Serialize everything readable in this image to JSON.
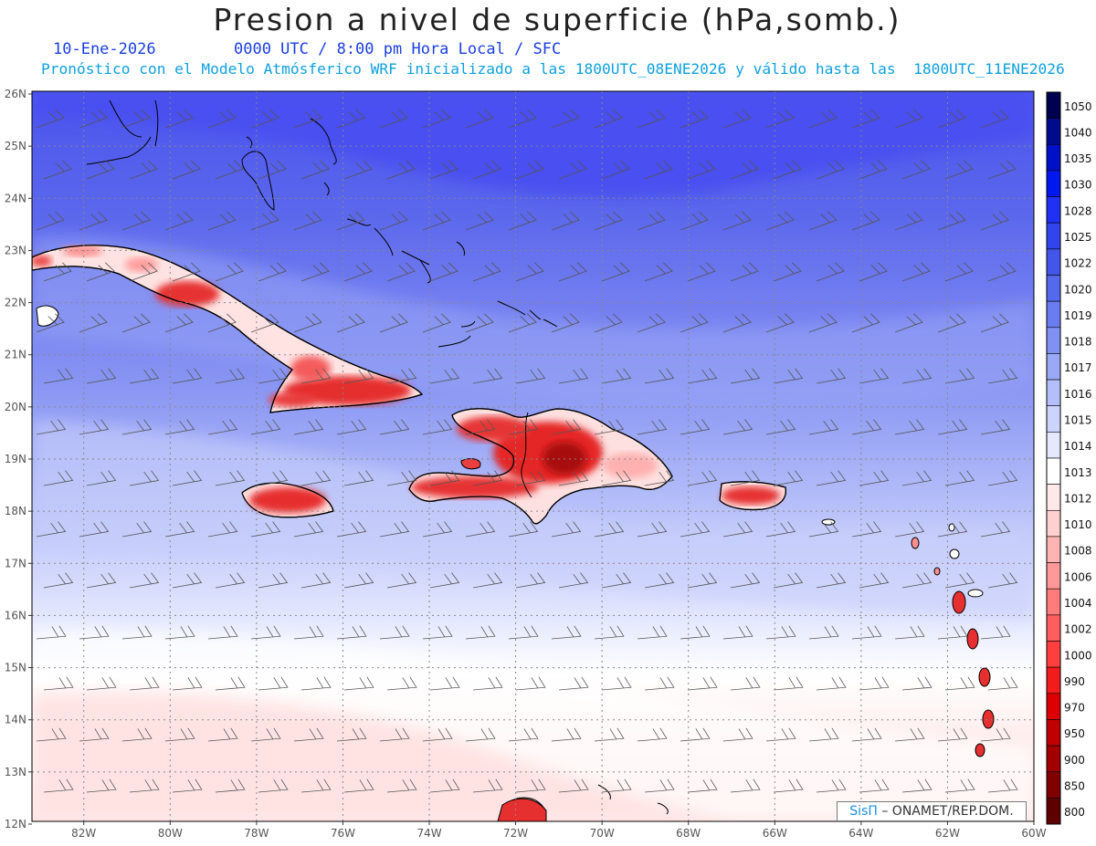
{
  "title": "Presion a nivel de superficie (hPa,somb.)",
  "date_line": "10-Ene-2026",
  "time_line": "0000 UTC / 8:00 pm Hora Local / SFC",
  "model_line": "Pronóstico con el Modelo Atmósferico WRF inicializado a las 1800UTC_08ENE2026 y válido hasta las  1800UTC_11ENE2026",
  "credit": {
    "brand": "SisΠ",
    "org": "– ONAMET/REP.DOM."
  },
  "lat_labels": [
    "26N",
    "25N",
    "24N",
    "23N",
    "22N",
    "21N",
    "20N",
    "19N",
    "18N",
    "17N",
    "16N",
    "15N",
    "14N",
    "13N",
    "12N"
  ],
  "lon_labels": [
    "82W",
    "80W",
    "78W",
    "76W",
    "74W",
    "72W",
    "70W",
    "68W",
    "66W",
    "64W",
    "62W",
    "60W"
  ],
  "colorbar": {
    "levels": [
      "1050",
      "1040",
      "1035",
      "1030",
      "1028",
      "1025",
      "1022",
      "1020",
      "1019",
      "1018",
      "1017",
      "1016",
      "1015",
      "1014",
      "1013",
      "1012",
      "1010",
      "1008",
      "1006",
      "1004",
      "1002",
      "1000",
      "990",
      "970",
      "950",
      "900",
      "850",
      "800"
    ],
    "colors": [
      "#000050",
      "#000a8c",
      "#0010c8",
      "#0018f0",
      "#2030f5",
      "#3244ee",
      "#4356ea",
      "#5569ec",
      "#6a7df0",
      "#8191f3",
      "#9aa8f6",
      "#b4befa",
      "#cdd4fc",
      "#e6e9fe",
      "#ffffff",
      "#ffe8e8",
      "#ffd0d0",
      "#ffb4b4",
      "#ff9898",
      "#ff7c7c",
      "#ff5e5e",
      "#ff3e3e",
      "#f21c1c",
      "#de0000",
      "#c00000",
      "#a20000",
      "#800000",
      "#5e0000"
    ]
  }
}
